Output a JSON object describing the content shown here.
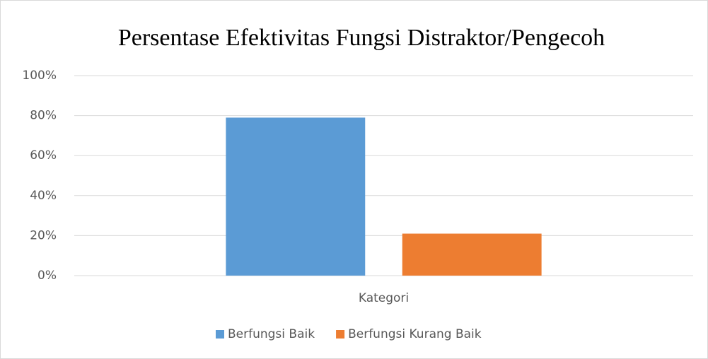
{
  "chart_data": {
    "type": "bar",
    "title": "Persentase Efektivitas Fungsi Distraktor/Pengecoh",
    "categories": [
      "Kategori"
    ],
    "series": [
      {
        "name": "Berfungsi Baik",
        "color": "#5b9bd5",
        "values": [
          79
        ]
      },
      {
        "name": "Berfungsi Kurang Baik",
        "color": "#ed7d31",
        "values": [
          21
        ]
      }
    ],
    "ylim": [
      0,
      100
    ],
    "yticks": [
      {
        "value": 0,
        "label": "0%"
      },
      {
        "value": 20,
        "label": "20%"
      },
      {
        "value": 40,
        "label": "40%"
      },
      {
        "value": 60,
        "label": "60%"
      },
      {
        "value": 80,
        "label": "80%"
      },
      {
        "value": 100,
        "label": "100%"
      }
    ],
    "grid": true,
    "legend": "bottom"
  }
}
